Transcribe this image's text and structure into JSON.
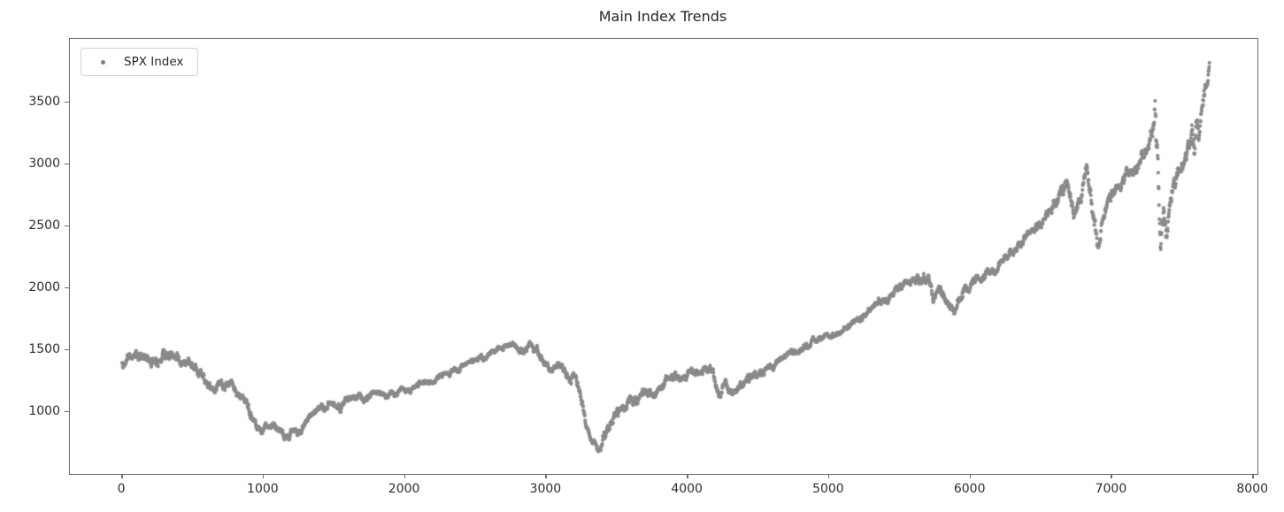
{
  "chart": {
    "title": "Main Index Trends",
    "legend": {
      "label": "SPX Index",
      "position": "upper-left"
    }
  },
  "chart_data": {
    "type": "scatter",
    "title": "Main Index Trends",
    "xlabel": "",
    "ylabel": "",
    "legend_entries": [
      "SPX Index"
    ],
    "legend_position": "upper-left",
    "grid": false,
    "marker_color": "#8a8a8a",
    "spine_color": "#6e6e6e",
    "xlim": [
      -370,
      8030
    ],
    "ylim": [
      500,
      4015
    ],
    "x_ticks": [
      0,
      1000,
      2000,
      3000,
      4000,
      5000,
      6000,
      7000,
      8000
    ],
    "y_ticks": [
      1000,
      1500,
      2000,
      2500,
      3000,
      3500
    ],
    "x_data_range": [
      0,
      7690
    ],
    "series": [
      {
        "name": "SPX Index",
        "keypoints": [
          [
            0,
            1400
          ],
          [
            80,
            1455
          ],
          [
            160,
            1470
          ],
          [
            240,
            1425
          ],
          [
            320,
            1460
          ],
          [
            400,
            1410
          ],
          [
            480,
            1390
          ],
          [
            560,
            1310
          ],
          [
            640,
            1175
          ],
          [
            720,
            1215
          ],
          [
            800,
            1205
          ],
          [
            860,
            1135
          ],
          [
            920,
            975
          ],
          [
            970,
            860
          ],
          [
            1010,
            830
          ],
          [
            1060,
            905
          ],
          [
            1110,
            860
          ],
          [
            1160,
            790
          ],
          [
            1210,
            855
          ],
          [
            1260,
            825
          ],
          [
            1320,
            950
          ],
          [
            1400,
            1030
          ],
          [
            1480,
            1065
          ],
          [
            1560,
            1085
          ],
          [
            1640,
            1120
          ],
          [
            1720,
            1105
          ],
          [
            1800,
            1165
          ],
          [
            1880,
            1135
          ],
          [
            1960,
            1155
          ],
          [
            2040,
            1195
          ],
          [
            2120,
            1225
          ],
          [
            2200,
            1265
          ],
          [
            2280,
            1295
          ],
          [
            2360,
            1320
          ],
          [
            2440,
            1380
          ],
          [
            2520,
            1440
          ],
          [
            2600,
            1490
          ],
          [
            2680,
            1530
          ],
          [
            2760,
            1555
          ],
          [
            2820,
            1490
          ],
          [
            2870,
            1525
          ],
          [
            2920,
            1480
          ],
          [
            2980,
            1400
          ],
          [
            3040,
            1330
          ],
          [
            3090,
            1385
          ],
          [
            3140,
            1300
          ],
          [
            3190,
            1305
          ],
          [
            3240,
            1170
          ],
          [
            3290,
            880
          ],
          [
            3330,
            740
          ],
          [
            3370,
            690
          ],
          [
            3410,
            830
          ],
          [
            3470,
            930
          ],
          [
            3550,
            1050
          ],
          [
            3630,
            1100
          ],
          [
            3700,
            1180
          ],
          [
            3760,
            1125
          ],
          [
            3830,
            1230
          ],
          [
            3900,
            1280
          ],
          [
            3970,
            1310
          ],
          [
            4040,
            1335
          ],
          [
            4110,
            1355
          ],
          [
            4180,
            1290
          ],
          [
            4230,
            1105
          ],
          [
            4270,
            1210
          ],
          [
            4320,
            1135
          ],
          [
            4380,
            1270
          ],
          [
            4450,
            1300
          ],
          [
            4530,
            1330
          ],
          [
            4610,
            1395
          ],
          [
            4690,
            1465
          ],
          [
            4770,
            1475
          ],
          [
            4850,
            1545
          ],
          [
            4930,
            1585
          ],
          [
            5010,
            1615
          ],
          [
            5090,
            1650
          ],
          [
            5170,
            1705
          ],
          [
            5250,
            1790
          ],
          [
            5330,
            1855
          ],
          [
            5410,
            1905
          ],
          [
            5490,
            2000
          ],
          [
            5570,
            2060
          ],
          [
            5650,
            2090
          ],
          [
            5705,
            2075
          ],
          [
            5735,
            1895
          ],
          [
            5775,
            1990
          ],
          [
            5830,
            1945
          ],
          [
            5880,
            1845
          ],
          [
            5940,
            1955
          ],
          [
            6020,
            2045
          ],
          [
            6100,
            2095
          ],
          [
            6180,
            2140
          ],
          [
            6260,
            2250
          ],
          [
            6340,
            2355
          ],
          [
            6420,
            2440
          ],
          [
            6500,
            2520
          ],
          [
            6570,
            2600
          ],
          [
            6640,
            2810
          ],
          [
            6690,
            2855
          ],
          [
            6735,
            2590
          ],
          [
            6780,
            2735
          ],
          [
            6825,
            2935
          ],
          [
            6865,
            2660
          ],
          [
            6905,
            2345
          ],
          [
            6945,
            2610
          ],
          [
            7020,
            2790
          ],
          [
            7100,
            2890
          ],
          [
            7180,
            2980
          ],
          [
            7250,
            3110
          ],
          [
            7305,
            3385
          ],
          [
            7325,
            3000
          ],
          [
            7345,
            2245
          ],
          [
            7365,
            2750
          ],
          [
            7385,
            2460
          ],
          [
            7410,
            2740
          ],
          [
            7440,
            2850
          ],
          [
            7470,
            2920
          ],
          [
            7500,
            3010
          ],
          [
            7530,
            3140
          ],
          [
            7555,
            3240
          ],
          [
            7570,
            3330
          ],
          [
            7585,
            3120
          ],
          [
            7600,
            3310
          ],
          [
            7615,
            3240
          ],
          [
            7635,
            3420
          ],
          [
            7655,
            3560
          ],
          [
            7675,
            3680
          ],
          [
            7690,
            3820
          ]
        ],
        "volatility_profile": [
          [
            0,
            0.016
          ],
          [
            400,
            0.016
          ],
          [
            900,
            0.02
          ],
          [
            1300,
            0.019
          ],
          [
            1800,
            0.012
          ],
          [
            2300,
            0.009
          ],
          [
            2800,
            0.01
          ],
          [
            3100,
            0.016
          ],
          [
            3400,
            0.026
          ],
          [
            3700,
            0.018
          ],
          [
            4100,
            0.013
          ],
          [
            4300,
            0.018
          ],
          [
            4700,
            0.01
          ],
          [
            5300,
            0.008
          ],
          [
            5700,
            0.012
          ],
          [
            5900,
            0.013
          ],
          [
            6300,
            0.007
          ],
          [
            6600,
            0.009
          ],
          [
            6850,
            0.014
          ],
          [
            7000,
            0.01
          ],
          [
            7250,
            0.008
          ],
          [
            7330,
            0.028
          ],
          [
            7400,
            0.022
          ],
          [
            7500,
            0.012
          ],
          [
            7690,
            0.011
          ]
        ],
        "point_step": 2,
        "marker_radius": 2.1
      }
    ]
  }
}
